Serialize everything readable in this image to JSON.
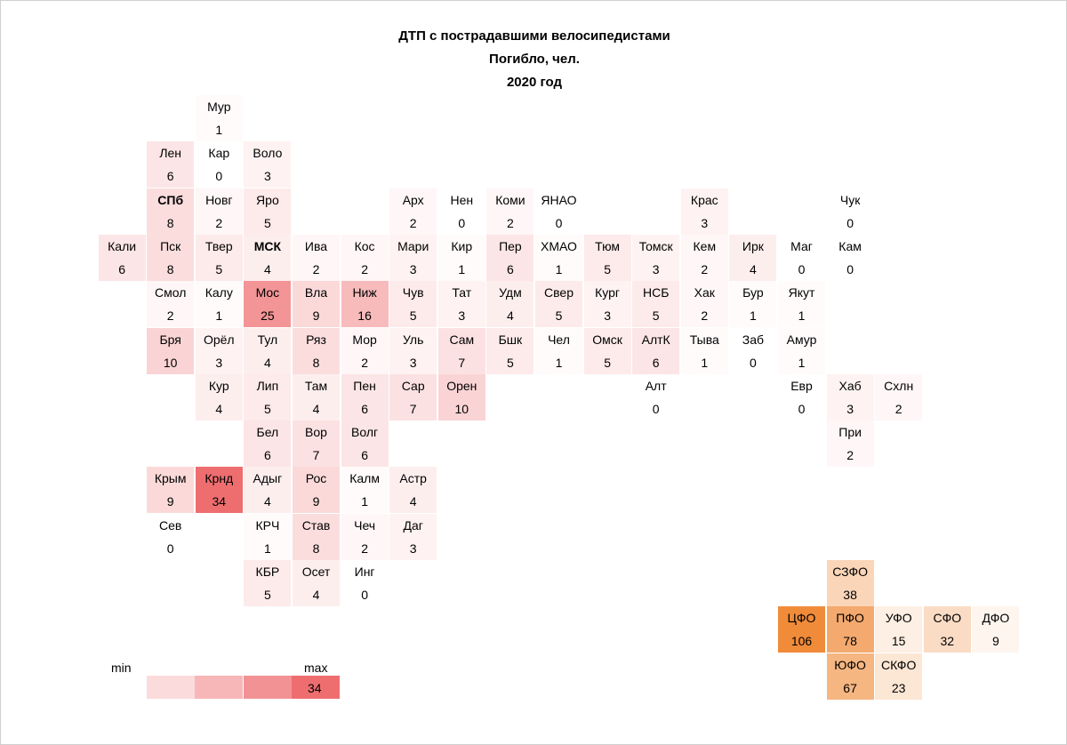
{
  "chart_data": {
    "type": "heatmap",
    "title": "ДТП с пострадавшими велосипедистами",
    "subtitle": "Погибло, чел.",
    "year_label": "2020 год",
    "regions": [
      {
        "name": "Мур",
        "value": "1",
        "row": 0,
        "col": 3
      },
      {
        "name": "Лен",
        "value": "6",
        "row": 1,
        "col": 2
      },
      {
        "name": "Кар",
        "value": "0",
        "row": 1,
        "col": 3
      },
      {
        "name": "Воло",
        "value": "3",
        "row": 1,
        "col": 4
      },
      {
        "name": "СПб",
        "value": "8",
        "row": 2,
        "col": 2,
        "bold": true
      },
      {
        "name": "Новг",
        "value": "2",
        "row": 2,
        "col": 3
      },
      {
        "name": "Яро",
        "value": "5",
        "row": 2,
        "col": 4
      },
      {
        "name": "Арх",
        "value": "2",
        "row": 2,
        "col": 7
      },
      {
        "name": "Нен",
        "value": "0",
        "row": 2,
        "col": 8
      },
      {
        "name": "Коми",
        "value": "2",
        "row": 2,
        "col": 9
      },
      {
        "name": "ЯНАО",
        "value": "0",
        "row": 2,
        "col": 10
      },
      {
        "name": "Крас",
        "value": "3",
        "row": 2,
        "col": 13
      },
      {
        "name": "Чук",
        "value": "0",
        "row": 2,
        "col": 16
      },
      {
        "name": "Кали",
        "value": "6",
        "row": 3,
        "col": 1
      },
      {
        "name": "Пск",
        "value": "8",
        "row": 3,
        "col": 2
      },
      {
        "name": "Твер",
        "value": "5",
        "row": 3,
        "col": 3
      },
      {
        "name": "МСК",
        "value": "4",
        "row": 3,
        "col": 4,
        "bold": true
      },
      {
        "name": "Ива",
        "value": "2",
        "row": 3,
        "col": 5
      },
      {
        "name": "Кос",
        "value": "2",
        "row": 3,
        "col": 6
      },
      {
        "name": "Мари",
        "value": "3",
        "row": 3,
        "col": 7
      },
      {
        "name": "Кир",
        "value": "1",
        "row": 3,
        "col": 8
      },
      {
        "name": "Пер",
        "value": "6",
        "row": 3,
        "col": 9
      },
      {
        "name": "ХМАО",
        "value": "1",
        "row": 3,
        "col": 10
      },
      {
        "name": "Тюм",
        "value": "5",
        "row": 3,
        "col": 11
      },
      {
        "name": "Томск",
        "value": "3",
        "row": 3,
        "col": 12
      },
      {
        "name": "Кем",
        "value": "2",
        "row": 3,
        "col": 13
      },
      {
        "name": "Ирк",
        "value": "4",
        "row": 3,
        "col": 14
      },
      {
        "name": "Маг",
        "value": "0",
        "row": 3,
        "col": 15
      },
      {
        "name": "Кам",
        "value": "0",
        "row": 3,
        "col": 16
      },
      {
        "name": "Смол",
        "value": "2",
        "row": 4,
        "col": 2
      },
      {
        "name": "Калу",
        "value": "1",
        "row": 4,
        "col": 3
      },
      {
        "name": "Мос",
        "value": "25",
        "row": 4,
        "col": 4
      },
      {
        "name": "Вла",
        "value": "9",
        "row": 4,
        "col": 5
      },
      {
        "name": "Ниж",
        "value": "16",
        "row": 4,
        "col": 6
      },
      {
        "name": "Чув",
        "value": "5",
        "row": 4,
        "col": 7
      },
      {
        "name": "Тат",
        "value": "3",
        "row": 4,
        "col": 8
      },
      {
        "name": "Удм",
        "value": "4",
        "row": 4,
        "col": 9
      },
      {
        "name": "Свер",
        "value": "5",
        "row": 4,
        "col": 10
      },
      {
        "name": "Кург",
        "value": "3",
        "row": 4,
        "col": 11
      },
      {
        "name": "НСБ",
        "value": "5",
        "row": 4,
        "col": 12
      },
      {
        "name": "Хак",
        "value": "2",
        "row": 4,
        "col": 13
      },
      {
        "name": "Бур",
        "value": "1",
        "row": 4,
        "col": 14
      },
      {
        "name": "Якут",
        "value": "1",
        "row": 4,
        "col": 15
      },
      {
        "name": "Бря",
        "value": "10",
        "row": 5,
        "col": 2
      },
      {
        "name": "Орёл",
        "value": "3",
        "row": 5,
        "col": 3
      },
      {
        "name": "Тул",
        "value": "4",
        "row": 5,
        "col": 4
      },
      {
        "name": "Ряз",
        "value": "8",
        "row": 5,
        "col": 5
      },
      {
        "name": "Мор",
        "value": "2",
        "row": 5,
        "col": 6
      },
      {
        "name": "Уль",
        "value": "3",
        "row": 5,
        "col": 7
      },
      {
        "name": "Сам",
        "value": "7",
        "row": 5,
        "col": 8
      },
      {
        "name": "Бшк",
        "value": "5",
        "row": 5,
        "col": 9
      },
      {
        "name": "Чел",
        "value": "1",
        "row": 5,
        "col": 10
      },
      {
        "name": "Омск",
        "value": "5",
        "row": 5,
        "col": 11
      },
      {
        "name": "АлтК",
        "value": "6",
        "row": 5,
        "col": 12
      },
      {
        "name": "Тыва",
        "value": "1",
        "row": 5,
        "col": 13
      },
      {
        "name": "Заб",
        "value": "0",
        "row": 5,
        "col": 14
      },
      {
        "name": "Амур",
        "value": "1",
        "row": 5,
        "col": 15
      },
      {
        "name": "Кур",
        "value": "4",
        "row": 6,
        "col": 3
      },
      {
        "name": "Лип",
        "value": "5",
        "row": 6,
        "col": 4
      },
      {
        "name": "Там",
        "value": "4",
        "row": 6,
        "col": 5
      },
      {
        "name": "Пен",
        "value": "6",
        "row": 6,
        "col": 6
      },
      {
        "name": "Сар",
        "value": "7",
        "row": 6,
        "col": 7
      },
      {
        "name": "Орен",
        "value": "10",
        "row": 6,
        "col": 8
      },
      {
        "name": "Алт",
        "value": "0",
        "row": 6,
        "col": 12
      },
      {
        "name": "Евр",
        "value": "0",
        "row": 6,
        "col": 15
      },
      {
        "name": "Хаб",
        "value": "3",
        "row": 6,
        "col": 16
      },
      {
        "name": "Схлн",
        "value": "2",
        "row": 6,
        "col": 17
      },
      {
        "name": "Бел",
        "value": "6",
        "row": 7,
        "col": 4
      },
      {
        "name": "Вор",
        "value": "7",
        "row": 7,
        "col": 5
      },
      {
        "name": "Волг",
        "value": "6",
        "row": 7,
        "col": 6
      },
      {
        "name": "При",
        "value": "2",
        "row": 7,
        "col": 16
      },
      {
        "name": "Крым",
        "value": "9",
        "row": 8,
        "col": 2
      },
      {
        "name": "Крнд",
        "value": "34",
        "row": 8,
        "col": 3
      },
      {
        "name": "Адыг",
        "value": "4",
        "row": 8,
        "col": 4
      },
      {
        "name": "Рос",
        "value": "9",
        "row": 8,
        "col": 5
      },
      {
        "name": "Калм",
        "value": "1",
        "row": 8,
        "col": 6
      },
      {
        "name": "Астр",
        "value": "4",
        "row": 8,
        "col": 7
      },
      {
        "name": "Сев",
        "value": "0",
        "row": 9,
        "col": 2
      },
      {
        "name": "КРЧ",
        "value": "1",
        "row": 9,
        "col": 4
      },
      {
        "name": "Став",
        "value": "8",
        "row": 9,
        "col": 5
      },
      {
        "name": "Чеч",
        "value": "2",
        "row": 9,
        "col": 6
      },
      {
        "name": "Даг",
        "value": "3",
        "row": 9,
        "col": 7
      },
      {
        "name": "КБР",
        "value": "5",
        "row": 10,
        "col": 4
      },
      {
        "name": "Осет",
        "value": "4",
        "row": 10,
        "col": 5
      },
      {
        "name": "Инг",
        "value": "0",
        "row": 10,
        "col": 6
      }
    ],
    "districts": [
      {
        "name": "СЗФО",
        "value": "38",
        "row": 10,
        "col": 16
      },
      {
        "name": "ЦФО",
        "value": "106",
        "row": 11,
        "col": 15
      },
      {
        "name": "ПФО",
        "value": "78",
        "row": 11,
        "col": 16
      },
      {
        "name": "УФО",
        "value": "15",
        "row": 11,
        "col": 17
      },
      {
        "name": "СФО",
        "value": "32",
        "row": 11,
        "col": 18
      },
      {
        "name": "ДФО",
        "value": "9",
        "row": 11,
        "col": 19
      },
      {
        "name": "ЮФО",
        "value": "67",
        "row": 12,
        "col": 16
      },
      {
        "name": "СКФО",
        "value": "23",
        "row": 12,
        "col": 17
      }
    ],
    "legend": {
      "min_label": "min",
      "max_label": "max",
      "min_value": "0",
      "max_value": "34",
      "steps": [
        0,
        8.5,
        17,
        25.5,
        34
      ]
    },
    "region_scale": {
      "min": 0,
      "max": 34
    },
    "district_scale": {
      "min": 0,
      "max": 106
    }
  },
  "colors": {
    "region_high": "#ee6e70",
    "district_high": "#f08b3a",
    "background": "#ffffff"
  }
}
